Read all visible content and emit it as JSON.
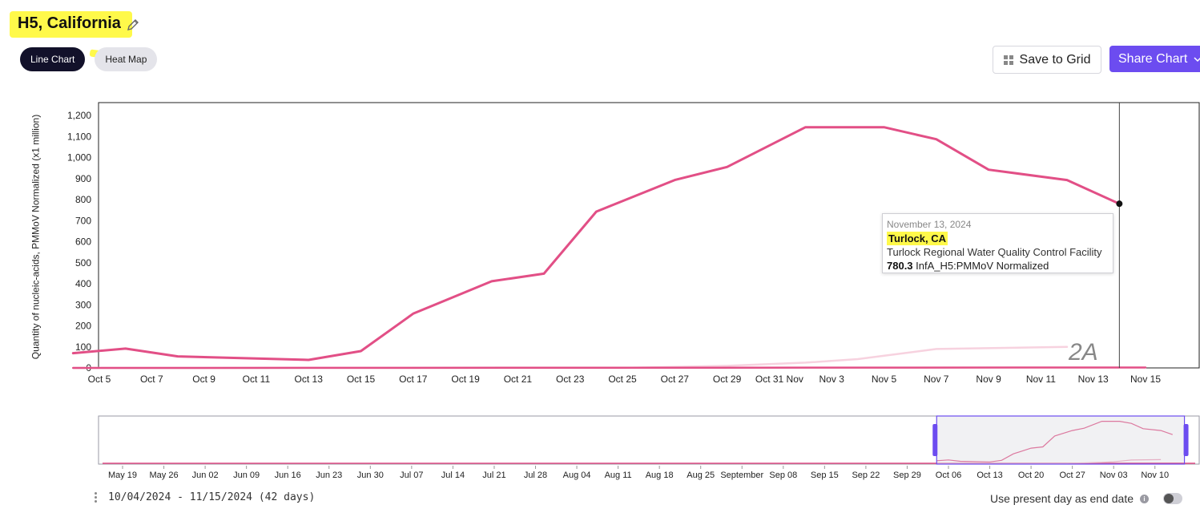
{
  "header": {
    "title": "H5, California",
    "tabs": [
      {
        "label": "Line Chart",
        "active": true
      },
      {
        "label": "Heat Map",
        "active": false
      }
    ],
    "save_label": "Save to Grid",
    "share_label": "Share Chart"
  },
  "chart_data": {
    "type": "line",
    "ylabel": "Quantity of nucleic-acids, PMMoV Normalized (x1 million)",
    "ylim": [
      0,
      1200
    ],
    "yticks": [
      "0",
      "100",
      "200",
      "300",
      "400",
      "500",
      "600",
      "700",
      "800",
      "900",
      "1,000",
      "1,100",
      "1,200"
    ],
    "xticks": [
      "Oct 5",
      "Oct 7",
      "Oct 9",
      "Oct 11",
      "Oct 13",
      "Oct 15",
      "Oct 17",
      "Oct 19",
      "Oct 21",
      "Oct 23",
      "Oct 25",
      "Oct 27",
      "Oct 29",
      "Oct 31 Nov",
      "Nov 3",
      "Nov 5",
      "Nov 7",
      "Nov 9",
      "Nov 11",
      "Nov 13",
      "Nov 15"
    ],
    "series": [
      {
        "name": "Turlock, CA",
        "color": "#e24f86",
        "points": [
          {
            "x": "2024-10-04",
            "y": 70
          },
          {
            "x": "2024-10-06",
            "y": 92
          },
          {
            "x": "2024-10-08",
            "y": 55
          },
          {
            "x": "2024-10-13",
            "y": 38
          },
          {
            "x": "2024-10-15",
            "y": 80
          },
          {
            "x": "2024-10-17",
            "y": 258
          },
          {
            "x": "2024-10-20",
            "y": 412
          },
          {
            "x": "2024-10-22",
            "y": 448
          },
          {
            "x": "2024-10-24",
            "y": 743
          },
          {
            "x": "2024-10-27",
            "y": 893
          },
          {
            "x": "2024-10-29",
            "y": 955
          },
          {
            "x": "2024-11-01",
            "y": 1144
          },
          {
            "x": "2024-11-04",
            "y": 1144
          },
          {
            "x": "2024-11-06",
            "y": 1087
          },
          {
            "x": "2024-11-08",
            "y": 942
          },
          {
            "x": "2024-11-11",
            "y": 893
          },
          {
            "x": "2024-11-13",
            "y": 780.3
          }
        ]
      },
      {
        "color": "#f7d2df",
        "points": [
          {
            "x": "2024-10-04",
            "y": 0
          },
          {
            "x": "2024-10-25",
            "y": 0
          },
          {
            "x": "2024-10-29",
            "y": 10
          },
          {
            "x": "2024-11-01",
            "y": 25
          },
          {
            "x": "2024-11-03",
            "y": 42
          },
          {
            "x": "2024-11-06",
            "y": 90
          },
          {
            "x": "2024-11-11",
            "y": 100
          }
        ]
      },
      {
        "color": "#e24f86",
        "points": [
          {
            "x": "2024-10-04",
            "y": 0
          },
          {
            "x": "2024-11-14",
            "y": 2
          }
        ]
      }
    ],
    "crosshair_x": "2024-11-13",
    "tooltip": {
      "date": "November 13, 2024",
      "location": "Turlock, CA",
      "facility": "Turlock Regional Water Quality Control Facility",
      "value": "780.3",
      "unit": "InfA_H5:PMMoV Normalized"
    },
    "annotation": "2A",
    "navigator": {
      "xticks": [
        "May 19",
        "May 26",
        "Jun 02",
        "Jun 09",
        "Jun 16",
        "Jun 23",
        "Jun 30",
        "Jul 07",
        "Jul 14",
        "Jul 21",
        "Jul 28",
        "Aug 04",
        "Aug 11",
        "Aug 18",
        "Aug 25",
        "September",
        "Sep 08",
        "Sep 15",
        "Sep 22",
        "Sep 29",
        "Oct 06",
        "Oct 13",
        "Oct 20",
        "Oct 27",
        "Nov 03",
        "Nov 10"
      ]
    }
  },
  "footer": {
    "date_range": "10/04/2024 - 11/15/2024 (42 days)",
    "present_day_label": "Use present day as end date",
    "present_day_enabled": false,
    "info_icon": "i"
  }
}
